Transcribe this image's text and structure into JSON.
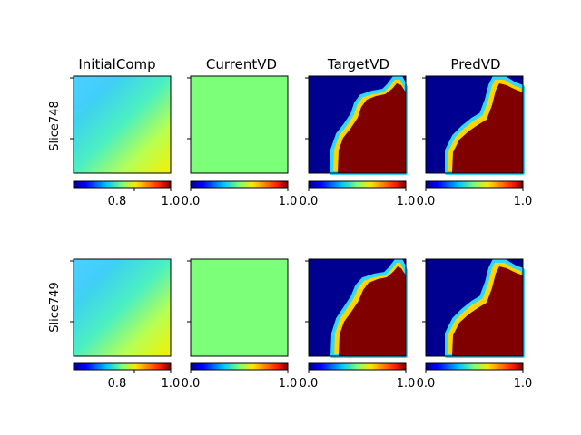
{
  "chart_data": {
    "type": "heatmap",
    "columns": [
      "InitialComp",
      "CurrentVD",
      "TargetVD",
      "PredVD"
    ],
    "rows": [
      {
        "label": "Slice748"
      },
      {
        "label": "Slice749"
      }
    ],
    "colormap": "jet",
    "colorbars": [
      {
        "ticks": [
          0.8,
          1.0
        ],
        "tick_labels": [
          "0.8",
          "1.0"
        ]
      },
      {
        "ticks": [
          0.0,
          1.0
        ],
        "tick_labels": [
          "0.0",
          "1.0"
        ]
      },
      {
        "ticks": [
          0.0,
          1.0
        ],
        "tick_labels": [
          "0.0",
          "1.0"
        ]
      },
      {
        "ticks": [
          0.0,
          1.0
        ],
        "tick_labels": [
          "0.0",
          "1.0"
        ]
      }
    ],
    "colorbar_range": [
      0.0,
      1.0
    ]
  }
}
